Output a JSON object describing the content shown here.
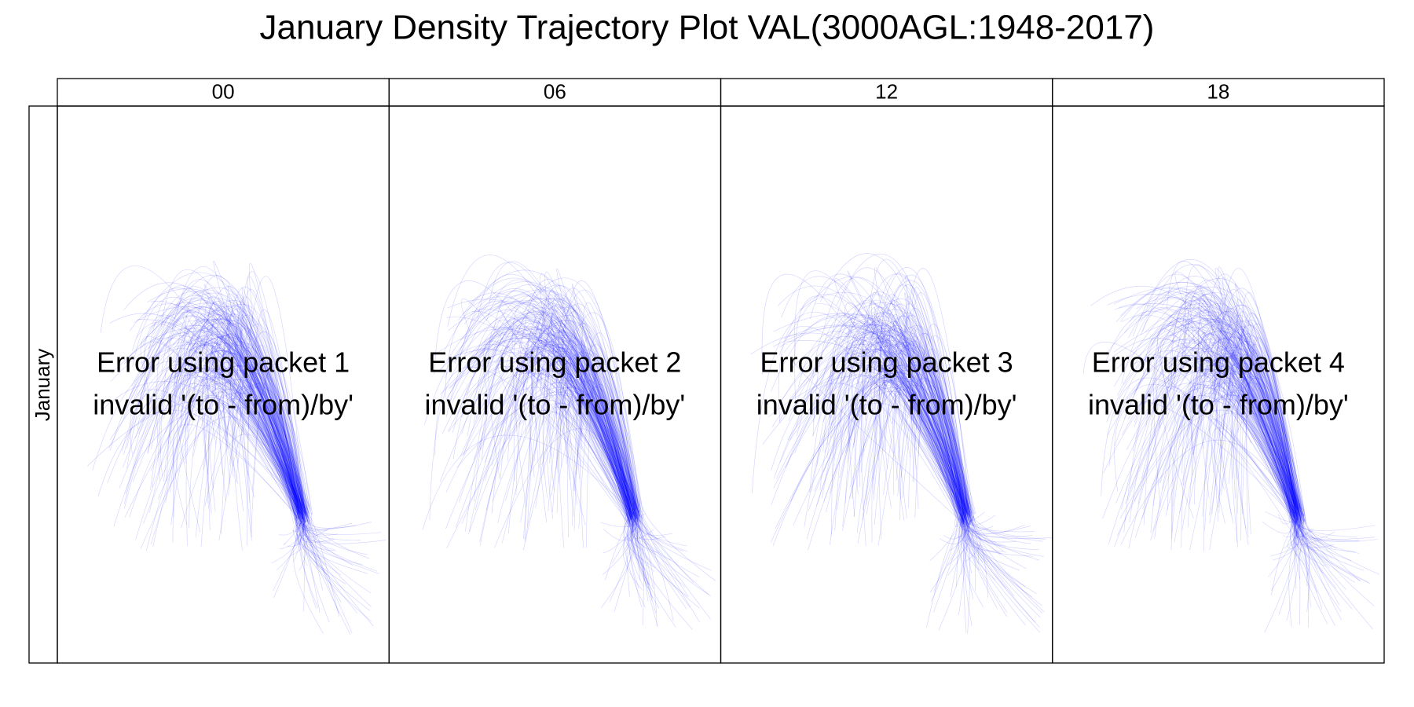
{
  "title": "January Density Trajectory Plot VAL(3000AGL:1948-2017)",
  "strip_label": "January",
  "panels": [
    {
      "header": "00",
      "message": [
        "Error using packet 1",
        "invalid '(to - from)/by'"
      ]
    },
    {
      "header": "06",
      "message": [
        "Error using packet 2",
        "invalid '(to - from)/by'"
      ]
    },
    {
      "header": "12",
      "message": [
        "Error using packet 3",
        "invalid '(to - from)/by'"
      ]
    },
    {
      "header": "18",
      "message": [
        "Error using packet 4",
        "invalid '(to - from)/by'"
      ]
    }
  ]
}
